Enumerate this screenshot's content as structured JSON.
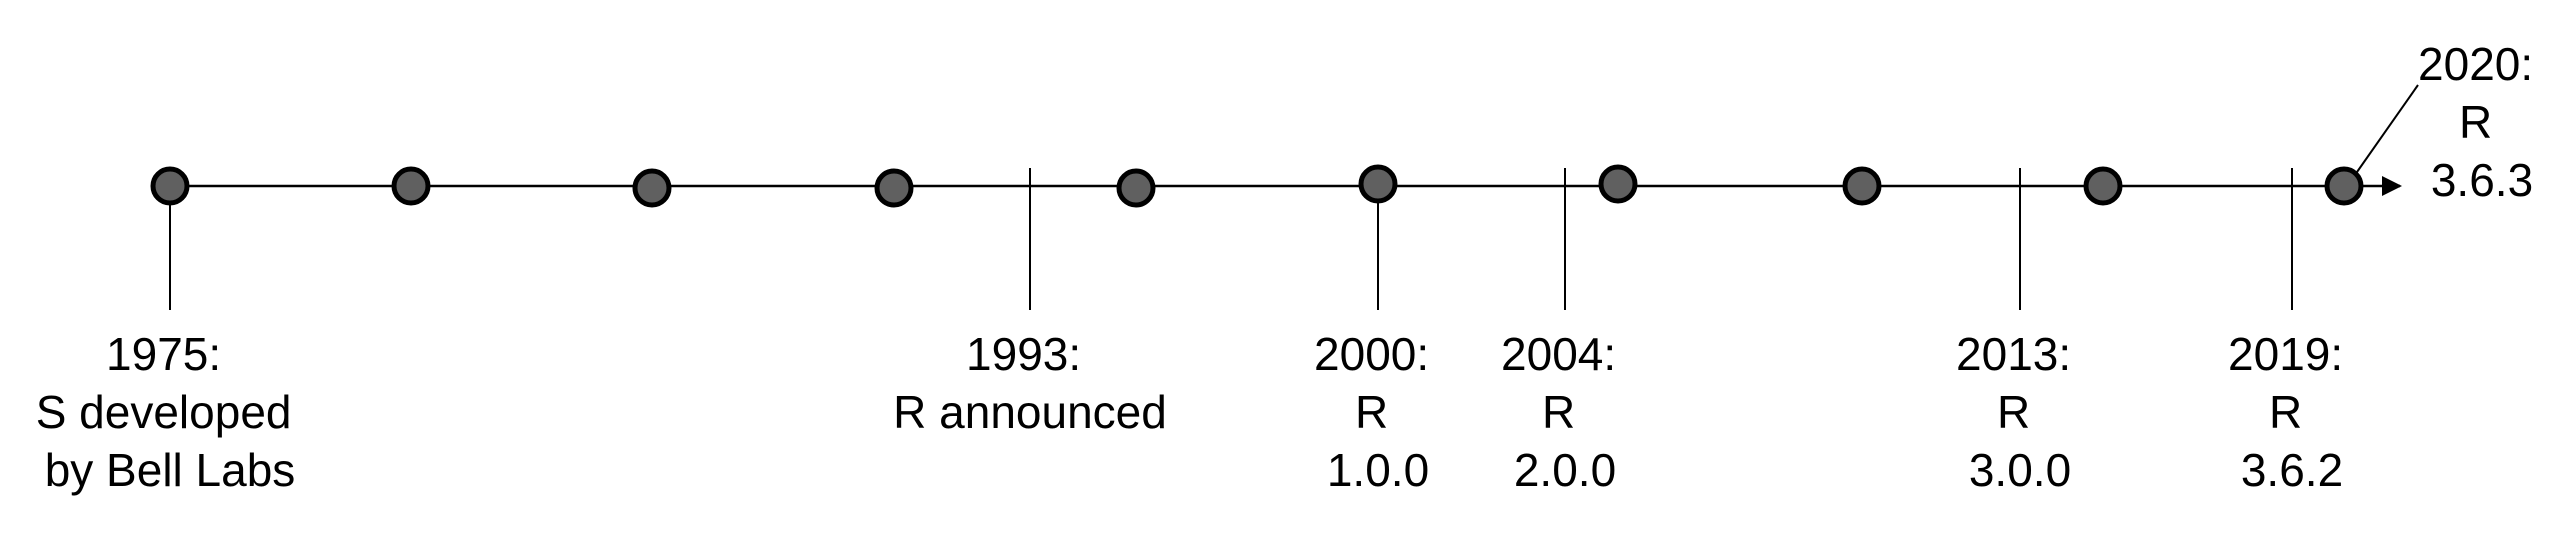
{
  "timeline": {
    "line_color": "#000000",
    "dot_fill": "#606060",
    "dot_stroke": "#000000",
    "dot_count": 10,
    "events": [
      {
        "lines": [
          "1975:",
          "S developed",
          "by Bell Labs"
        ]
      },
      {
        "lines": [
          "1993:",
          "R announced"
        ]
      },
      {
        "lines": [
          "2000:",
          "R",
          "1.0.0"
        ]
      },
      {
        "lines": [
          "2004:",
          "R",
          "2.0.0"
        ]
      },
      {
        "lines": [
          "2013:",
          "R",
          "3.0.0"
        ]
      },
      {
        "lines": [
          "2019:",
          "R",
          "3.6.2"
        ]
      },
      {
        "lines": [
          "2020:",
          "R",
          "3.6.3"
        ]
      }
    ]
  }
}
